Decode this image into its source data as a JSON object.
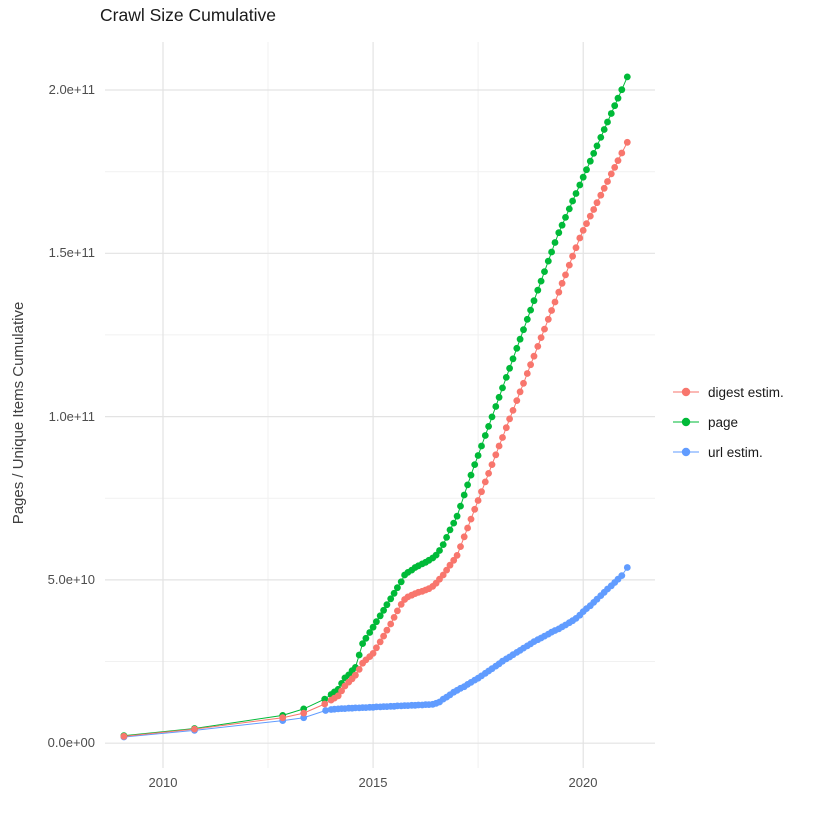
{
  "chart_data": {
    "type": "scatter",
    "title": "Crawl Size Cumulative",
    "xlabel": "",
    "ylabel": "Pages / Unique Items Cumulative",
    "value_unit": "1e9 (values below are billions; rendered axis shows scientific notation)",
    "xlim": [
      2008.62,
      2021.71
    ],
    "ylim_e9": [
      -7.6,
      214.7
    ],
    "grid": {
      "major": "#e3e3e3",
      "minor": "#f1f1f1",
      "visible": true
    },
    "text_color": "#4d4d4d",
    "legend_position": "right",
    "x_ticks": [
      {
        "label": "2010",
        "value": 2010
      },
      {
        "label": "2015",
        "value": 2015
      },
      {
        "label": "2020",
        "value": 2020
      }
    ],
    "x_minor": [
      2012.5,
      2017.5
    ],
    "y_ticks": [
      {
        "label": "0.0e+00",
        "value": 0
      },
      {
        "label": "5.0e+10",
        "value": 50
      },
      {
        "label": "1.0e+11",
        "value": 100
      },
      {
        "label": "1.5e+11",
        "value": 150
      },
      {
        "label": "2.0e+11",
        "value": 200
      }
    ],
    "y_minor": [
      25,
      75,
      125,
      175
    ],
    "draw_order": [
      2,
      1,
      0
    ],
    "series": [
      {
        "name": "digest estim.",
        "color": "#F8766D",
        "points": [
          [
            2009.07,
            2.1
          ],
          [
            2010.75,
            4.3
          ],
          [
            2012.85,
            7.8
          ],
          [
            2013.35,
            9.2
          ],
          [
            2013.85,
            12
          ],
          [
            2014.0,
            13.2
          ],
          [
            2014.08,
            13.8
          ],
          [
            2014.17,
            14.5
          ],
          [
            2014.25,
            16
          ],
          [
            2014.33,
            17.5
          ],
          [
            2014.42,
            18.7
          ],
          [
            2014.5,
            19.7
          ],
          [
            2014.58,
            20.8
          ],
          [
            2014.67,
            22.6
          ],
          [
            2014.75,
            24.5
          ],
          [
            2014.83,
            25.5
          ],
          [
            2014.92,
            26.5
          ],
          [
            2015.0,
            27.5
          ],
          [
            2015.08,
            29.2
          ],
          [
            2015.17,
            31
          ],
          [
            2015.25,
            32.8
          ],
          [
            2015.33,
            34.6
          ],
          [
            2015.42,
            36.5
          ],
          [
            2015.5,
            38.5
          ],
          [
            2015.58,
            40.5
          ],
          [
            2015.67,
            42.5
          ],
          [
            2015.75,
            44
          ],
          [
            2015.83,
            44.8
          ],
          [
            2015.92,
            45.3
          ],
          [
            2016.0,
            45.8
          ],
          [
            2016.08,
            46.2
          ],
          [
            2016.17,
            46.5
          ],
          [
            2016.25,
            46.9
          ],
          [
            2016.33,
            47.3
          ],
          [
            2016.42,
            48
          ],
          [
            2016.5,
            49
          ],
          [
            2016.58,
            50.2
          ],
          [
            2016.67,
            51.5
          ],
          [
            2016.75,
            53
          ],
          [
            2016.83,
            54.5
          ],
          [
            2016.92,
            56
          ],
          [
            2017.0,
            57.5
          ],
          [
            2017.08,
            60.2
          ],
          [
            2017.17,
            63.2
          ],
          [
            2017.25,
            65.9
          ],
          [
            2017.33,
            68.6
          ],
          [
            2017.42,
            71.6
          ],
          [
            2017.5,
            74.3
          ],
          [
            2017.58,
            77
          ],
          [
            2017.67,
            80
          ],
          [
            2017.75,
            82.6
          ],
          [
            2017.83,
            85.3
          ],
          [
            2017.92,
            88.3
          ],
          [
            2018.0,
            91
          ],
          [
            2018.08,
            93.6
          ],
          [
            2018.17,
            96.6
          ],
          [
            2018.25,
            99.3
          ],
          [
            2018.33,
            101.9
          ],
          [
            2018.42,
            104.9
          ],
          [
            2018.5,
            107.6
          ],
          [
            2018.58,
            110.2
          ],
          [
            2018.67,
            113.2
          ],
          [
            2018.75,
            115.9
          ],
          [
            2018.83,
            118.5
          ],
          [
            2018.92,
            121.5
          ],
          [
            2019.0,
            124.2
          ],
          [
            2019.08,
            126.8
          ],
          [
            2019.17,
            129.8
          ],
          [
            2019.25,
            132.5
          ],
          [
            2019.33,
            135.1
          ],
          [
            2019.42,
            138.1
          ],
          [
            2019.5,
            140.8
          ],
          [
            2019.58,
            143.4
          ],
          [
            2019.67,
            146.4
          ],
          [
            2019.75,
            149.1
          ],
          [
            2019.83,
            151.7
          ],
          [
            2019.92,
            154.7
          ],
          [
            2020.0,
            157
          ],
          [
            2020.08,
            159.1
          ],
          [
            2020.17,
            161.4
          ],
          [
            2020.25,
            163.4
          ],
          [
            2020.33,
            165.5
          ],
          [
            2020.42,
            167.8
          ],
          [
            2020.5,
            169.9
          ],
          [
            2020.58,
            172
          ],
          [
            2020.67,
            174.3
          ],
          [
            2020.75,
            176.3
          ],
          [
            2020.83,
            178.4
          ],
          [
            2020.92,
            180.7
          ],
          [
            2021.05,
            184
          ]
        ]
      },
      {
        "name": "page",
        "color": "#00BA38",
        "points": [
          [
            2009.07,
            2.3
          ],
          [
            2010.75,
            4.5
          ],
          [
            2012.85,
            8.5
          ],
          [
            2013.35,
            10.5
          ],
          [
            2013.85,
            13.5
          ],
          [
            2014.0,
            14.9
          ],
          [
            2014.08,
            15.7
          ],
          [
            2014.17,
            16.5
          ],
          [
            2014.25,
            18.3
          ],
          [
            2014.33,
            20
          ],
          [
            2014.42,
            20.9
          ],
          [
            2014.5,
            22.2
          ],
          [
            2014.58,
            23.2
          ],
          [
            2014.67,
            27
          ],
          [
            2014.75,
            30.5
          ],
          [
            2014.83,
            32.1
          ],
          [
            2014.92,
            33.9
          ],
          [
            2015.0,
            35.5
          ],
          [
            2015.08,
            37.2
          ],
          [
            2015.17,
            39
          ],
          [
            2015.25,
            40.7
          ],
          [
            2015.33,
            42.4
          ],
          [
            2015.42,
            44.2
          ],
          [
            2015.5,
            45.9
          ],
          [
            2015.58,
            47.6
          ],
          [
            2015.67,
            49.4
          ],
          [
            2015.75,
            51.5
          ],
          [
            2015.83,
            52.3
          ],
          [
            2015.92,
            53
          ],
          [
            2016.0,
            53.8
          ],
          [
            2016.08,
            54.3
          ],
          [
            2016.17,
            54.9
          ],
          [
            2016.25,
            55.4
          ],
          [
            2016.33,
            56
          ],
          [
            2016.42,
            56.7
          ],
          [
            2016.5,
            57.6
          ],
          [
            2016.58,
            59
          ],
          [
            2016.67,
            60.8
          ],
          [
            2016.75,
            63
          ],
          [
            2016.83,
            65.3
          ],
          [
            2016.92,
            67.4
          ],
          [
            2017.0,
            69.5
          ],
          [
            2017.08,
            72.6
          ],
          [
            2017.17,
            76
          ],
          [
            2017.25,
            79.1
          ],
          [
            2017.33,
            82.1
          ],
          [
            2017.42,
            85.3
          ],
          [
            2017.5,
            88.1
          ],
          [
            2017.58,
            91
          ],
          [
            2017.67,
            94.2
          ],
          [
            2017.75,
            97
          ],
          [
            2017.83,
            99.9
          ],
          [
            2017.92,
            103.1
          ],
          [
            2018.0,
            105.9
          ],
          [
            2018.08,
            108.8
          ],
          [
            2018.17,
            112
          ],
          [
            2018.25,
            114.8
          ],
          [
            2018.33,
            117.7
          ],
          [
            2018.42,
            120.9
          ],
          [
            2018.5,
            123.7
          ],
          [
            2018.58,
            126.6
          ],
          [
            2018.67,
            129.8
          ],
          [
            2018.75,
            132.6
          ],
          [
            2018.83,
            135.5
          ],
          [
            2018.92,
            138.7
          ],
          [
            2019.0,
            141.5
          ],
          [
            2019.08,
            144.4
          ],
          [
            2019.17,
            147.6
          ],
          [
            2019.25,
            150.4
          ],
          [
            2019.33,
            153.3
          ],
          [
            2019.42,
            156.3
          ],
          [
            2019.5,
            158.6
          ],
          [
            2019.58,
            161
          ],
          [
            2019.67,
            163.6
          ],
          [
            2019.75,
            166
          ],
          [
            2019.83,
            168.3
          ],
          [
            2019.92,
            170.9
          ],
          [
            2020.0,
            173.3
          ],
          [
            2020.08,
            175.6
          ],
          [
            2020.17,
            178.2
          ],
          [
            2020.25,
            180.6
          ],
          [
            2020.33,
            182.9
          ],
          [
            2020.42,
            185.5
          ],
          [
            2020.5,
            187.9
          ],
          [
            2020.58,
            190.2
          ],
          [
            2020.67,
            192.8
          ],
          [
            2020.75,
            195.2
          ],
          [
            2020.83,
            197.5
          ],
          [
            2020.92,
            200.1
          ],
          [
            2021.05,
            204
          ]
        ]
      },
      {
        "name": "url estim.",
        "color": "#619CFF",
        "points": [
          [
            2009.07,
            1.9
          ],
          [
            2010.75,
            3.9
          ],
          [
            2012.85,
            6.9
          ],
          [
            2013.35,
            7.8
          ],
          [
            2013.87,
            10
          ],
          [
            2014.0,
            10.3
          ],
          [
            2014.08,
            10.4
          ],
          [
            2014.17,
            10.5
          ],
          [
            2014.25,
            10.6
          ],
          [
            2014.33,
            10.6
          ],
          [
            2014.42,
            10.7
          ],
          [
            2014.5,
            10.7
          ],
          [
            2014.58,
            10.8
          ],
          [
            2014.67,
            10.8
          ],
          [
            2014.75,
            10.9
          ],
          [
            2014.83,
            10.9
          ],
          [
            2014.92,
            11
          ],
          [
            2015.0,
            11
          ],
          [
            2015.08,
            11.1
          ],
          [
            2015.17,
            11.1
          ],
          [
            2015.25,
            11.2
          ],
          [
            2015.33,
            11.2
          ],
          [
            2015.42,
            11.3
          ],
          [
            2015.5,
            11.3
          ],
          [
            2015.58,
            11.4
          ],
          [
            2015.67,
            11.4
          ],
          [
            2015.75,
            11.5
          ],
          [
            2015.83,
            11.5
          ],
          [
            2015.92,
            11.6
          ],
          [
            2016.0,
            11.6
          ],
          [
            2016.08,
            11.7
          ],
          [
            2016.17,
            11.7
          ],
          [
            2016.25,
            11.8
          ],
          [
            2016.33,
            11.8
          ],
          [
            2016.42,
            11.9
          ],
          [
            2016.5,
            12.2
          ],
          [
            2016.58,
            12.6
          ],
          [
            2016.67,
            13.5
          ],
          [
            2016.75,
            14.1
          ],
          [
            2016.83,
            14.8
          ],
          [
            2016.92,
            15.6
          ],
          [
            2017.0,
            16.2
          ],
          [
            2017.08,
            16.8
          ],
          [
            2017.17,
            17.3
          ],
          [
            2017.25,
            18
          ],
          [
            2017.33,
            18.6
          ],
          [
            2017.42,
            19.3
          ],
          [
            2017.5,
            19.9
          ],
          [
            2017.58,
            20.6
          ],
          [
            2017.67,
            21.4
          ],
          [
            2017.75,
            22.1
          ],
          [
            2017.83,
            22.8
          ],
          [
            2017.92,
            23.6
          ],
          [
            2018.0,
            24.3
          ],
          [
            2018.08,
            25.1
          ],
          [
            2018.17,
            25.8
          ],
          [
            2018.25,
            26.4
          ],
          [
            2018.33,
            27.1
          ],
          [
            2018.42,
            27.8
          ],
          [
            2018.5,
            28.4
          ],
          [
            2018.58,
            29.1
          ],
          [
            2018.67,
            29.8
          ],
          [
            2018.75,
            30.4
          ],
          [
            2018.83,
            31.1
          ],
          [
            2018.92,
            31.7
          ],
          [
            2019.0,
            32.2
          ],
          [
            2019.08,
            32.8
          ],
          [
            2019.17,
            33.4
          ],
          [
            2019.25,
            34
          ],
          [
            2019.33,
            34.5
          ],
          [
            2019.42,
            35
          ],
          [
            2019.5,
            35.6
          ],
          [
            2019.58,
            36.2
          ],
          [
            2019.67,
            36.9
          ],
          [
            2019.75,
            37.5
          ],
          [
            2019.83,
            38.2
          ],
          [
            2019.92,
            39.2
          ],
          [
            2020.0,
            40.3
          ],
          [
            2020.08,
            41.2
          ],
          [
            2020.17,
            42.1
          ],
          [
            2020.25,
            43.1
          ],
          [
            2020.33,
            44.1
          ],
          [
            2020.42,
            45.2
          ],
          [
            2020.5,
            46.2
          ],
          [
            2020.58,
            47.2
          ],
          [
            2020.67,
            48.2
          ],
          [
            2020.75,
            49.2
          ],
          [
            2020.83,
            50.2
          ],
          [
            2020.92,
            51.3
          ],
          [
            2021.05,
            53.8
          ]
        ]
      }
    ]
  }
}
